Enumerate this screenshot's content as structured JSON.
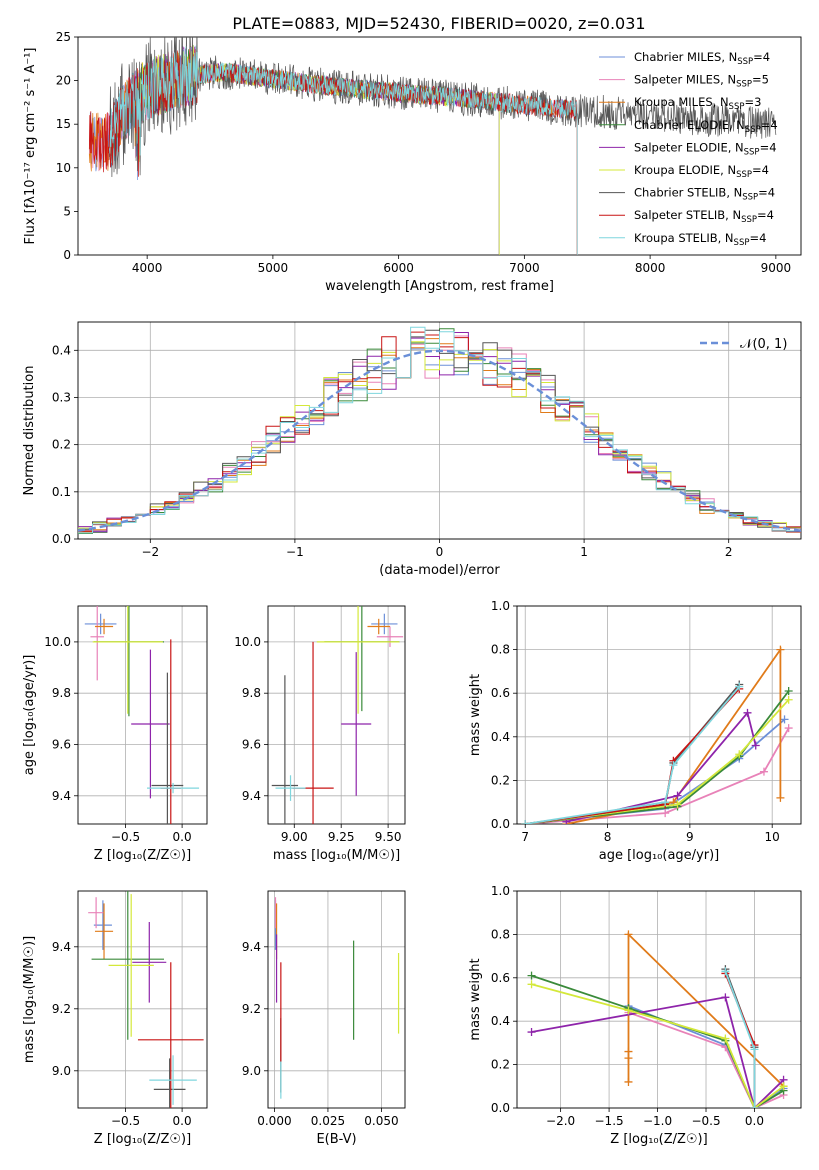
{
  "title": "PLATE=0883, MJD=52430, FIBERID=0020, z=0.031",
  "colors": {
    "chabrier_miles": "#6c8fd8",
    "salpeter_miles": "#e882b8",
    "kroupa_miles": "#e07b1a",
    "chabrier_elodie": "#3a8a3a",
    "salpeter_elodie": "#8e24aa",
    "kroupa_elodie": "#d4e83a",
    "chabrier_stelib": "#555555",
    "salpeter_stelib": "#c81414",
    "kroupa_stelib": "#7fd6dd",
    "normal_curve": "#6a8fd8",
    "grid": "#b0b0b0"
  },
  "chart_data": [
    {
      "id": "spectrum",
      "type": "line",
      "xlabel": "wavelength [Angstrom, rest frame]",
      "ylabel": "Flux [fλ10⁻¹⁷ erg cm⁻² s⁻¹ A⁻¹]",
      "xlim": [
        3450,
        9200
      ],
      "ylim": [
        0,
        25
      ],
      "xticks": [
        4000,
        5000,
        6000,
        7000,
        8000,
        9000
      ],
      "yticks": [
        0,
        5,
        10,
        15,
        20,
        25
      ],
      "legend": "top-right",
      "series": [
        {
          "key": "chabrier_miles",
          "name": "Chabrier MILES, N",
          "sub": "SSP",
          "suffix": "=4",
          "x_range": [
            3540,
            7420
          ]
        },
        {
          "key": "salpeter_miles",
          "name": "Salpeter MILES, N",
          "sub": "SSP",
          "suffix": "=5",
          "x_range": [
            3540,
            7420
          ]
        },
        {
          "key": "kroupa_miles",
          "name": "Kroupa MILES, N",
          "sub": "SSP",
          "suffix": "=3",
          "x_range": [
            3540,
            7420
          ]
        },
        {
          "key": "chabrier_elodie",
          "name": "Chabrier ELODIE, N",
          "sub": "SSP",
          "suffix": "=4",
          "x_range": [
            3900,
            6800
          ]
        },
        {
          "key": "salpeter_elodie",
          "name": "Salpeter ELODIE, N",
          "sub": "SSP",
          "suffix": "=4",
          "x_range": [
            3900,
            6800
          ]
        },
        {
          "key": "kroupa_elodie",
          "name": "Kroupa ELODIE, N",
          "sub": "SSP",
          "suffix": "=4",
          "x_range": [
            3900,
            6800
          ]
        },
        {
          "key": "chabrier_stelib",
          "name": "Chabrier STELIB, N",
          "sub": "SSP",
          "suffix": "=4",
          "x_range": [
            3700,
            9000
          ]
        },
        {
          "key": "salpeter_stelib",
          "name": "Salpeter STELIB, N",
          "sub": "SSP",
          "suffix": "=4",
          "x_range": [
            3540,
            7420
          ]
        },
        {
          "key": "kroupa_stelib",
          "name": "Kroupa STELIB, N",
          "sub": "SSP",
          "suffix": "=4",
          "x_range": [
            3700,
            7420
          ]
        }
      ],
      "continuum": [
        [
          3700,
          13
        ],
        [
          3800,
          16
        ],
        [
          3950,
          18.5
        ],
        [
          4100,
          19.5
        ],
        [
          4300,
          20.5
        ],
        [
          4600,
          21
        ],
        [
          5000,
          20.2
        ],
        [
          5500,
          19.3
        ],
        [
          6000,
          18.6
        ],
        [
          6500,
          18
        ],
        [
          7000,
          17.2
        ],
        [
          7500,
          16.5
        ],
        [
          8000,
          16
        ],
        [
          8500,
          15.5
        ],
        [
          9000,
          15.2
        ]
      ]
    },
    {
      "id": "residuals",
      "type": "histogram",
      "xlabel": "(data-model)/error",
      "ylabel": "Normed distribution",
      "xlim": [
        -2.5,
        2.5
      ],
      "ylim": [
        0,
        0.46
      ],
      "xticks": [
        -2,
        -1,
        0,
        1,
        2
      ],
      "yticks": [
        0.0,
        0.1,
        0.2,
        0.3,
        0.4
      ],
      "bin_width": 0.1,
      "legend": "top-right",
      "legend_label": "𝒩(0, 1)",
      "curve": {
        "type": "normal",
        "mean": 0,
        "sigma": 1
      }
    },
    {
      "id": "age_vs_Z",
      "type": "errorbar",
      "xlabel": "Z [log₁₀(Z/Z☉)]",
      "ylabel": "age  [log₁₀(age/yr)]",
      "xlim": [
        -0.92,
        0.22
      ],
      "ylim": [
        9.29,
        10.14
      ],
      "xticks": [
        -0.5,
        0.0
      ],
      "yticks": [
        9.4,
        9.6,
        9.8,
        10.0
      ],
      "points": [
        {
          "key": "chabrier_miles",
          "x": -0.72,
          "y": 10.07,
          "xerr": 0.14,
          "yerr": 0.04
        },
        {
          "key": "salpeter_miles",
          "x": -0.75,
          "y": 10.02,
          "xerr": 0.06,
          "yerr": 0.17
        },
        {
          "key": "kroupa_miles",
          "x": -0.69,
          "y": 10.06,
          "xerr": 0.08,
          "yerr": 0.03
        },
        {
          "key": "chabrier_elodie",
          "x": -0.47,
          "y": 10.0,
          "xerr": 0.31,
          "yerr": 0.29
        },
        {
          "key": "salpeter_elodie",
          "x": -0.28,
          "y": 9.68,
          "xerr": 0.17,
          "yerr": 0.29
        },
        {
          "key": "kroupa_elodie",
          "x": -0.48,
          "y": 10.0,
          "xerr": 0.31,
          "yerr": 0.28
        },
        {
          "key": "chabrier_stelib",
          "x": -0.13,
          "y": 9.44,
          "xerr": 0.14,
          "yerr": 0.44
        },
        {
          "key": "salpeter_stelib",
          "x": -0.1,
          "y": 9.43,
          "xerr": 0.09,
          "yerr": 0.58
        },
        {
          "key": "kroupa_stelib",
          "x": -0.08,
          "y": 9.43,
          "xerr": 0.23,
          "yerr": 0.02
        }
      ]
    },
    {
      "id": "age_vs_mass",
      "type": "errorbar",
      "xlabel": "mass [log₁₀(M/M☉)]",
      "ylabel": "",
      "xlim": [
        8.86,
        9.59
      ],
      "ylim": [
        9.29,
        10.14
      ],
      "xticks": [
        9.0,
        9.25,
        9.5
      ],
      "yticks": [
        9.4,
        9.6,
        9.8,
        10.0
      ],
      "points": [
        {
          "key": "chabrier_miles",
          "x": 9.48,
          "y": 10.07,
          "xerr": 0.07,
          "yerr": 0.04
        },
        {
          "key": "salpeter_miles",
          "x": 9.51,
          "y": 10.02,
          "xerr": 0.07,
          "yerr": 0.04
        },
        {
          "key": "kroupa_miles",
          "x": 9.45,
          "y": 10.06,
          "xerr": 0.06,
          "yerr": 0.03
        },
        {
          "key": "chabrier_elodie",
          "x": 9.36,
          "y": 10.0,
          "xerr": 0.2,
          "yerr": 0.27
        },
        {
          "key": "salpeter_elodie",
          "x": 9.33,
          "y": 9.68,
          "xerr": 0.08,
          "yerr": 0.28
        },
        {
          "key": "kroupa_elodie",
          "x": 9.34,
          "y": 10.0,
          "xerr": 0.22,
          "yerr": 0.28
        },
        {
          "key": "chabrier_stelib",
          "x": 8.95,
          "y": 9.44,
          "xerr": 0.07,
          "yerr": 0.43
        },
        {
          "key": "salpeter_stelib",
          "x": 9.1,
          "y": 9.43,
          "xerr": 0.11,
          "yerr": 0.57
        },
        {
          "key": "kroupa_stelib",
          "x": 8.98,
          "y": 9.43,
          "xerr": 0.08,
          "yerr": 0.05
        }
      ]
    },
    {
      "id": "mass_weight_vs_age",
      "type": "line",
      "xlabel": "age  [log₁₀(age/yr)]",
      "ylabel": "mass weight",
      "xlim": [
        6.9,
        10.35
      ],
      "ylim": [
        0,
        1
      ],
      "xticks": [
        7,
        8,
        9,
        10
      ],
      "yticks": [
        0.0,
        0.2,
        0.4,
        0.6,
        0.8,
        1.0
      ],
      "series": [
        {
          "key": "chabrier_miles",
          "x": [
            7.0,
            8.7,
            9.6,
            10.15
          ],
          "y": [
            0.0,
            0.07,
            0.3,
            0.48
          ]
        },
        {
          "key": "salpeter_miles",
          "x": [
            7.0,
            8.7,
            9.9,
            10.2
          ],
          "y": [
            0.0,
            0.05,
            0.24,
            0.44
          ]
        },
        {
          "key": "kroupa_miles",
          "x": [
            7.5,
            8.8,
            10.1,
            10.1
          ],
          "y": [
            0.0,
            0.1,
            0.8,
            0.12
          ]
        },
        {
          "key": "chabrier_elodie",
          "x": [
            7.0,
            8.85,
            9.6,
            10.2
          ],
          "y": [
            0.0,
            0.08,
            0.31,
            0.61
          ]
        },
        {
          "key": "salpeter_elodie",
          "x": [
            7.5,
            8.85,
            9.7,
            9.8
          ],
          "y": [
            0.01,
            0.13,
            0.51,
            0.36
          ]
        },
        {
          "key": "kroupa_elodie",
          "x": [
            7.0,
            8.85,
            9.6,
            10.2
          ],
          "y": [
            0.0,
            0.09,
            0.32,
            0.57
          ]
        },
        {
          "key": "chabrier_stelib",
          "x": [
            7.0,
            8.7,
            8.8,
            9.6
          ],
          "y": [
            0.0,
            0.09,
            0.28,
            0.64
          ]
        },
        {
          "key": "salpeter_stelib",
          "x": [
            7.0,
            8.7,
            8.8,
            9.6
          ],
          "y": [
            0.0,
            0.09,
            0.29,
            0.62
          ]
        },
        {
          "key": "kroupa_stelib",
          "x": [
            7.0,
            8.7,
            8.8,
            9.6
          ],
          "y": [
            0.0,
            0.1,
            0.27,
            0.63
          ]
        }
      ]
    },
    {
      "id": "mass_vs_Z",
      "type": "errorbar",
      "xlabel": "Z [log₁₀(Z/Z☉)]",
      "ylabel": "mass [log₁₀(M/M☉)]",
      "xlim": [
        -0.92,
        0.22
      ],
      "ylim": [
        8.88,
        9.58
      ],
      "xticks": [
        -0.5,
        0.0
      ],
      "yticks": [
        9.0,
        9.2,
        9.4
      ],
      "points": [
        {
          "key": "chabrier_miles",
          "x": -0.7,
          "y": 9.47,
          "xerr": 0.08,
          "yerr": 0.08
        },
        {
          "key": "salpeter_miles",
          "x": -0.76,
          "y": 9.51,
          "xerr": 0.07,
          "yerr": 0.05
        },
        {
          "key": "kroupa_miles",
          "x": -0.69,
          "y": 9.45,
          "xerr": 0.08,
          "yerr": 0.09
        },
        {
          "key": "chabrier_elodie",
          "x": -0.48,
          "y": 9.36,
          "xerr": 0.32,
          "yerr": 0.26
        },
        {
          "key": "salpeter_elodie",
          "x": -0.29,
          "y": 9.35,
          "xerr": 0.15,
          "yerr": 0.13
        },
        {
          "key": "kroupa_elodie",
          "x": -0.45,
          "y": 9.34,
          "xerr": 0.2,
          "yerr": 0.23
        },
        {
          "key": "chabrier_stelib",
          "x": -0.11,
          "y": 8.94,
          "xerr": 0.14,
          "yerr": 0.1
        },
        {
          "key": "salpeter_stelib",
          "x": -0.1,
          "y": 9.1,
          "xerr": 0.29,
          "yerr": 0.25
        },
        {
          "key": "kroupa_stelib",
          "x": -0.08,
          "y": 8.97,
          "xerr": 0.21,
          "yerr": 0.08
        }
      ]
    },
    {
      "id": "mass_vs_ebv",
      "type": "errorbar",
      "xlabel": "E(B-V)",
      "ylabel": "",
      "xlim": [
        -0.003,
        0.061
      ],
      "ylim": [
        8.88,
        9.58
      ],
      "xticks": [
        0.0,
        0.025,
        0.05
      ],
      "yticks": [
        9.0,
        9.2,
        9.4
      ],
      "points": [
        {
          "key": "chabrier_miles",
          "x": 0.0005,
          "y": 9.47,
          "xerr": 0.0,
          "yerr": 0.08
        },
        {
          "key": "salpeter_miles",
          "x": 0.0005,
          "y": 9.51,
          "xerr": 0.0,
          "yerr": 0.05
        },
        {
          "key": "kroupa_miles",
          "x": 0.001,
          "y": 9.45,
          "xerr": 0.0,
          "yerr": 0.09
        },
        {
          "key": "chabrier_elodie",
          "x": 0.037,
          "y": 9.26,
          "xerr": 0.0,
          "yerr": 0.16
        },
        {
          "key": "salpeter_elodie",
          "x": 0.001,
          "y": 9.33,
          "xerr": 0.0,
          "yerr": 0.11
        },
        {
          "key": "kroupa_elodie",
          "x": 0.058,
          "y": 9.25,
          "xerr": 0.0,
          "yerr": 0.13
        },
        {
          "key": "chabrier_stelib",
          "x": 0.003,
          "y": 9.05,
          "xerr": 0.0,
          "yerr": 0.12
        },
        {
          "key": "salpeter_stelib",
          "x": 0.003,
          "y": 9.19,
          "xerr": 0.0,
          "yerr": 0.16
        },
        {
          "key": "kroupa_stelib",
          "x": 0.003,
          "y": 8.97,
          "xerr": 0.0,
          "yerr": 0.06
        }
      ]
    },
    {
      "id": "mass_weight_vs_Z",
      "type": "line",
      "xlabel": "Z [log₁₀(Z/Z☉)]",
      "ylabel": "mass weight",
      "xlim": [
        -2.45,
        0.48
      ],
      "ylim": [
        0,
        1
      ],
      "xticks": [
        -2.0,
        -1.5,
        -1.0,
        -0.5,
        0.0
      ],
      "yticks": [
        0.0,
        0.2,
        0.4,
        0.6,
        0.8,
        1.0
      ],
      "series": [
        {
          "key": "chabrier_miles",
          "x": [
            -1.3,
            -0.3,
            0.0,
            0.3
          ],
          "y": [
            0.47,
            0.29,
            0.0,
            0.09
          ]
        },
        {
          "key": "salpeter_miles",
          "x": [
            -1.3,
            -0.3,
            0.0,
            0.3
          ],
          "y": [
            0.44,
            0.28,
            0.0,
            0.06
          ]
        },
        {
          "key": "kroupa_miles",
          "x": [
            -1.3,
            -1.3,
            -1.3,
            -1.3,
            0.3
          ],
          "y": [
            0.12,
            0.26,
            0.23,
            0.8,
            0.1
          ]
        },
        {
          "key": "chabrier_elodie",
          "x": [
            -2.3,
            -1.3,
            -0.3,
            0.0,
            0.3
          ],
          "y": [
            0.61,
            0.46,
            0.31,
            0.0,
            0.08
          ]
        },
        {
          "key": "salpeter_elodie",
          "x": [
            -2.3,
            -0.3,
            0.0,
            0.3
          ],
          "y": [
            0.35,
            0.51,
            0.0,
            0.13
          ]
        },
        {
          "key": "kroupa_elodie",
          "x": [
            -2.3,
            -1.3,
            -0.3,
            0.0,
            0.3
          ],
          "y": [
            0.57,
            0.45,
            0.32,
            0.0,
            0.1
          ]
        },
        {
          "key": "chabrier_stelib",
          "x": [
            -0.3,
            0.0,
            0.0
          ],
          "y": [
            0.64,
            0.28,
            0.0
          ]
        },
        {
          "key": "salpeter_stelib",
          "x": [
            -0.3,
            0.0,
            0.0
          ],
          "y": [
            0.62,
            0.29,
            0.0
          ]
        },
        {
          "key": "kroupa_stelib",
          "x": [
            -0.3,
            0.0,
            0.0
          ],
          "y": [
            0.63,
            0.27,
            0.0
          ]
        }
      ]
    }
  ]
}
